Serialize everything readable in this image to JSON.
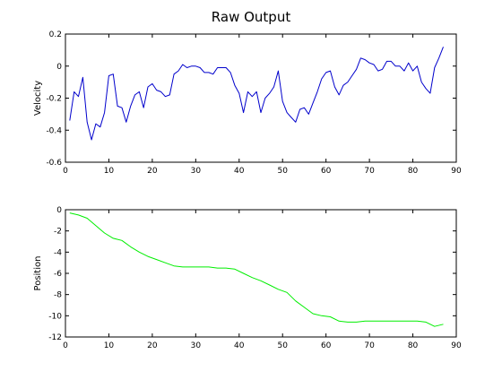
{
  "figure_title": "Raw Output",
  "chart_data": [
    {
      "type": "line",
      "xlabel": "",
      "ylabel": "Velocity",
      "xlim": [
        0,
        90
      ],
      "ylim": [
        -0.6,
        0.2
      ],
      "x_ticks": [
        0,
        10,
        20,
        30,
        40,
        50,
        60,
        70,
        80,
        90
      ],
      "y_ticks": [
        -0.6,
        -0.4,
        -0.2,
        0,
        0.2
      ],
      "y_tick_labels": [
        "-0.6",
        "-0.4",
        "-0.2",
        "0",
        "0.2"
      ],
      "x_tick_labels": [
        "0",
        "10",
        "20",
        "30",
        "40",
        "50",
        "60",
        "70",
        "80",
        "90"
      ],
      "grid": false,
      "series": [
        {
          "color": "#0000cc",
          "x": [
            1,
            2,
            3,
            4,
            5,
            6,
            7,
            8,
            9,
            10,
            11,
            12,
            13,
            14,
            15,
            16,
            17,
            18,
            19,
            20,
            21,
            22,
            23,
            24,
            25,
            26,
            27,
            28,
            29,
            30,
            31,
            32,
            33,
            34,
            35,
            36,
            37,
            38,
            39,
            40,
            41,
            42,
            43,
            44,
            45,
            46,
            47,
            48,
            49,
            50,
            51,
            52,
            53,
            54,
            55,
            56,
            57,
            58,
            59,
            60,
            61,
            62,
            63,
            64,
            65,
            66,
            67,
            68,
            69,
            70,
            71,
            72,
            73,
            74,
            75,
            76,
            77,
            78,
            79,
            80,
            81,
            82,
            83,
            84,
            85,
            86,
            87
          ],
          "values": [
            -0.34,
            -0.16,
            -0.19,
            -0.07,
            -0.35,
            -0.46,
            -0.36,
            -0.38,
            -0.29,
            -0.06,
            -0.05,
            -0.25,
            -0.26,
            -0.35,
            -0.25,
            -0.18,
            -0.16,
            -0.26,
            -0.13,
            -0.11,
            -0.15,
            -0.16,
            -0.19,
            -0.18,
            -0.05,
            -0.03,
            0.01,
            -0.01,
            0.0,
            0.0,
            -0.01,
            -0.04,
            -0.04,
            -0.05,
            -0.01,
            -0.01,
            -0.01,
            -0.04,
            -0.12,
            -0.17,
            -0.29,
            -0.16,
            -0.19,
            -0.16,
            -0.29,
            -0.2,
            -0.17,
            -0.13,
            -0.03,
            -0.22,
            -0.29,
            -0.32,
            -0.35,
            -0.27,
            -0.26,
            -0.3,
            -0.23,
            -0.16,
            -0.08,
            -0.04,
            -0.03,
            -0.13,
            -0.18,
            -0.12,
            -0.1,
            -0.06,
            -0.02,
            0.05,
            0.04,
            0.02,
            0.01,
            -0.03,
            -0.02,
            0.03,
            0.03,
            0.0,
            0.0,
            -0.03,
            0.02,
            -0.03,
            0.0,
            -0.1,
            -0.14,
            -0.17,
            -0.01,
            0.05,
            0.12
          ]
        }
      ]
    },
    {
      "type": "line",
      "xlabel": "",
      "ylabel": "Position",
      "xlim": [
        0,
        90
      ],
      "ylim": [
        -12,
        0
      ],
      "x_ticks": [
        0,
        10,
        20,
        30,
        40,
        50,
        60,
        70,
        80,
        90
      ],
      "y_ticks": [
        -12,
        -10,
        -8,
        -6,
        -4,
        -2,
        0
      ],
      "y_tick_labels": [
        "-12",
        "-10",
        "-8",
        "-6",
        "-4",
        "-2",
        "0"
      ],
      "x_tick_labels": [
        "0",
        "10",
        "20",
        "30",
        "40",
        "50",
        "60",
        "70",
        "80",
        "90"
      ],
      "grid": false,
      "series": [
        {
          "color": "#00ee00",
          "x": [
            1,
            3,
            5,
            7,
            9,
            11,
            13,
            15,
            17,
            19,
            21,
            23,
            25,
            27,
            30,
            33,
            35,
            37,
            39,
            41,
            43,
            45,
            47,
            49,
            51,
            53,
            55,
            57,
            59,
            61,
            63,
            65,
            67,
            69,
            71,
            73,
            75,
            77,
            79,
            81,
            83,
            85,
            87
          ],
          "values": [
            -0.3,
            -0.5,
            -0.8,
            -1.5,
            -2.2,
            -2.7,
            -2.9,
            -3.5,
            -4.0,
            -4.4,
            -4.7,
            -5.0,
            -5.3,
            -5.4,
            -5.4,
            -5.4,
            -5.5,
            -5.5,
            -5.6,
            -6.0,
            -6.4,
            -6.7,
            -7.1,
            -7.5,
            -7.8,
            -8.6,
            -9.2,
            -9.8,
            -10.0,
            -10.1,
            -10.5,
            -10.6,
            -10.6,
            -10.5,
            -10.5,
            -10.5,
            -10.5,
            -10.5,
            -10.5,
            -10.5,
            -10.6,
            -11.0,
            -10.8
          ]
        }
      ]
    }
  ]
}
